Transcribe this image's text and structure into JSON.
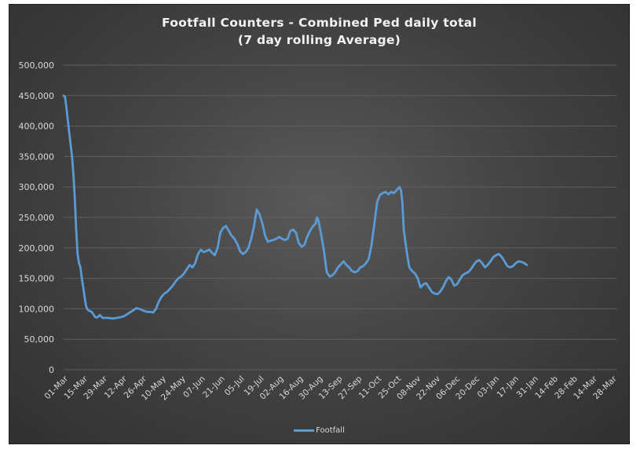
{
  "chart_data": {
    "type": "line",
    "title": "Footfall Counters - Combined Ped daily total",
    "subtitle": "(7 day rolling Average)",
    "xlabel": "",
    "ylabel": "",
    "ylim": [
      0,
      500000
    ],
    "y_ticks": [
      0,
      50000,
      100000,
      150000,
      200000,
      250000,
      300000,
      350000,
      400000,
      450000,
      500000
    ],
    "y_tick_labels": [
      "0",
      "50,000",
      "100,000",
      "150,000",
      "200,000",
      "250,000",
      "300,000",
      "350,000",
      "400,000",
      "450,000",
      "500,000"
    ],
    "categories": [
      "01-Mar",
      "15-Mar",
      "29-Mar",
      "12-Apr",
      "26-Apr",
      "10-May",
      "24-May",
      "07-Jun",
      "21-Jun",
      "05-Jul",
      "19-Jul",
      "02-Aug",
      "16-Aug",
      "30-Aug",
      "13-Sep",
      "27-Sep",
      "11-Oct",
      "25-Oct",
      "08-Nov",
      "22-Nov",
      "06-Dec",
      "20-Dec",
      "03-Jan",
      "17-Jan",
      "31-Jan",
      "14-Feb",
      "28-Feb",
      "14-Mar",
      "28-Mar"
    ],
    "grid": true,
    "legend_position": "bottom",
    "series": [
      {
        "name": "Footfall",
        "color": "#5b9bd5",
        "points": [
          [
            0,
            450000
          ],
          [
            1,
            448000
          ],
          [
            2,
            430000
          ],
          [
            3,
            410000
          ],
          [
            4,
            390000
          ],
          [
            5,
            370000
          ],
          [
            6,
            350000
          ],
          [
            7,
            320000
          ],
          [
            8,
            280000
          ],
          [
            9,
            230000
          ],
          [
            10,
            190000
          ],
          [
            11,
            175000
          ],
          [
            12,
            168000
          ],
          [
            13,
            150000
          ],
          [
            14,
            135000
          ],
          [
            15,
            120000
          ],
          [
            16,
            105000
          ],
          [
            17,
            99000
          ],
          [
            18,
            97000
          ],
          [
            19,
            96000
          ],
          [
            20,
            95000
          ],
          [
            21,
            92000
          ],
          [
            22,
            88000
          ],
          [
            23,
            86000
          ],
          [
            24,
            86000
          ],
          [
            25,
            88000
          ],
          [
            26,
            90000
          ],
          [
            27,
            87000
          ],
          [
            28,
            85000
          ],
          [
            30,
            85000
          ],
          [
            32,
            85000
          ],
          [
            35,
            84000
          ],
          [
            38,
            85000
          ],
          [
            40,
            86000
          ],
          [
            42,
            87000
          ],
          [
            44,
            89000
          ],
          [
            46,
            92000
          ],
          [
            48,
            95000
          ],
          [
            50,
            98000
          ],
          [
            52,
            101000
          ],
          [
            54,
            100000
          ],
          [
            56,
            98000
          ],
          [
            58,
            96000
          ],
          [
            60,
            95000
          ],
          [
            62,
            95000
          ],
          [
            64,
            94000
          ],
          [
            66,
            100000
          ],
          [
            68,
            112000
          ],
          [
            70,
            120000
          ],
          [
            72,
            125000
          ],
          [
            74,
            128000
          ],
          [
            76,
            133000
          ],
          [
            78,
            138000
          ],
          [
            80,
            145000
          ],
          [
            82,
            150000
          ],
          [
            84,
            153000
          ],
          [
            86,
            158000
          ],
          [
            88,
            165000
          ],
          [
            90,
            172000
          ],
          [
            92,
            168000
          ],
          [
            94,
            175000
          ],
          [
            96,
            190000
          ],
          [
            98,
            197000
          ],
          [
            100,
            193000
          ],
          [
            102,
            195000
          ],
          [
            104,
            197000
          ],
          [
            106,
            192000
          ],
          [
            108,
            188000
          ],
          [
            110,
            200000
          ],
          [
            112,
            225000
          ],
          [
            114,
            233000
          ],
          [
            116,
            236000
          ],
          [
            118,
            228000
          ],
          [
            120,
            220000
          ],
          [
            122,
            215000
          ],
          [
            124,
            207000
          ],
          [
            126,
            195000
          ],
          [
            128,
            190000
          ],
          [
            130,
            193000
          ],
          [
            132,
            200000
          ],
          [
            134,
            215000
          ],
          [
            136,
            235000
          ],
          [
            137,
            250000
          ],
          [
            138,
            263000
          ],
          [
            140,
            255000
          ],
          [
            142,
            240000
          ],
          [
            144,
            220000
          ],
          [
            146,
            210000
          ],
          [
            148,
            212000
          ],
          [
            150,
            213000
          ],
          [
            152,
            215000
          ],
          [
            154,
            218000
          ],
          [
            156,
            215000
          ],
          [
            158,
            213000
          ],
          [
            160,
            215000
          ],
          [
            162,
            228000
          ],
          [
            164,
            230000
          ],
          [
            166,
            225000
          ],
          [
            168,
            208000
          ],
          [
            170,
            202000
          ],
          [
            172,
            205000
          ],
          [
            174,
            218000
          ],
          [
            176,
            228000
          ],
          [
            178,
            235000
          ],
          [
            180,
            240000
          ],
          [
            181,
            250000
          ],
          [
            182,
            245000
          ],
          [
            184,
            222000
          ],
          [
            186,
            195000
          ],
          [
            188,
            160000
          ],
          [
            190,
            153000
          ],
          [
            192,
            155000
          ],
          [
            194,
            160000
          ],
          [
            196,
            168000
          ],
          [
            198,
            173000
          ],
          [
            200,
            178000
          ],
          [
            202,
            172000
          ],
          [
            204,
            168000
          ],
          [
            206,
            162000
          ],
          [
            208,
            160000
          ],
          [
            210,
            162000
          ],
          [
            212,
            168000
          ],
          [
            214,
            170000
          ],
          [
            216,
            175000
          ],
          [
            218,
            182000
          ],
          [
            220,
            205000
          ],
          [
            222,
            240000
          ],
          [
            224,
            275000
          ],
          [
            226,
            287000
          ],
          [
            228,
            290000
          ],
          [
            230,
            292000
          ],
          [
            232,
            288000
          ],
          [
            234,
            292000
          ],
          [
            236,
            290000
          ],
          [
            238,
            295000
          ],
          [
            240,
            300000
          ],
          [
            241,
            295000
          ],
          [
            242,
            275000
          ],
          [
            243,
            230000
          ],
          [
            245,
            195000
          ],
          [
            247,
            168000
          ],
          [
            249,
            162000
          ],
          [
            251,
            158000
          ],
          [
            253,
            150000
          ],
          [
            255,
            135000
          ],
          [
            257,
            140000
          ],
          [
            259,
            142000
          ],
          [
            261,
            135000
          ],
          [
            263,
            128000
          ],
          [
            265,
            125000
          ],
          [
            267,
            124000
          ],
          [
            269,
            128000
          ],
          [
            271,
            135000
          ],
          [
            273,
            145000
          ],
          [
            275,
            152000
          ],
          [
            277,
            148000
          ],
          [
            279,
            138000
          ],
          [
            281,
            140000
          ],
          [
            283,
            148000
          ],
          [
            285,
            155000
          ],
          [
            287,
            158000
          ],
          [
            289,
            160000
          ],
          [
            291,
            165000
          ],
          [
            293,
            172000
          ],
          [
            295,
            178000
          ],
          [
            297,
            180000
          ],
          [
            299,
            175000
          ],
          [
            301,
            168000
          ],
          [
            303,
            172000
          ],
          [
            305,
            178000
          ],
          [
            307,
            185000
          ],
          [
            309,
            188000
          ],
          [
            311,
            190000
          ],
          [
            313,
            185000
          ],
          [
            315,
            178000
          ],
          [
            317,
            170000
          ],
          [
            319,
            168000
          ],
          [
            321,
            170000
          ],
          [
            323,
            175000
          ],
          [
            325,
            178000
          ],
          [
            327,
            177000
          ],
          [
            329,
            175000
          ],
          [
            331,
            172000
          ]
        ]
      }
    ]
  }
}
